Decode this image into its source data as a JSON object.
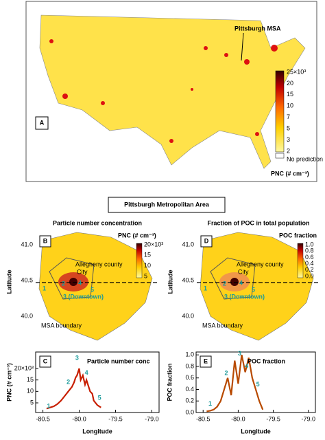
{
  "panel_a": {
    "label": "A",
    "annotation": "Pittsburgh MSA",
    "colorbar": {
      "ticks": [
        "25×10³",
        "20",
        "15",
        "10",
        "7",
        "5",
        "3",
        "2"
      ],
      "no_data": "No prediction",
      "title": "PNC (# cm⁻³)"
    }
  },
  "section_title": "Pittsburgh Metropolitan Area",
  "panel_b": {
    "title": "Particle number concentration",
    "label": "B",
    "y_axis_label": "Latitude",
    "y_ticks": [
      "41.0",
      "40.5",
      "40.0"
    ],
    "colorbar": {
      "title": "PNC (# cm⁻³)",
      "ticks": [
        "20×10³",
        "15",
        "10",
        "5"
      ]
    },
    "annotations": [
      "Allegheny county",
      "City",
      "1",
      "2",
      "3 (Downtown)",
      "4",
      "5",
      "MSA boundary"
    ]
  },
  "panel_d": {
    "title": "Fraction of POC in total population",
    "label": "D",
    "y_axis_label": "Latitude",
    "y_ticks": [
      "41.0",
      "40.5",
      "40.0"
    ],
    "colorbar": {
      "title": "POC fraction",
      "ticks": [
        "1.0",
        "0.8",
        "0.6",
        "0.4",
        "0.2",
        "0.0"
      ]
    },
    "annotations": [
      "Allegheny county",
      "City",
      "1",
      "2",
      "3 (Downtown)",
      "4",
      "5",
      "MSA boundary"
    ]
  },
  "chart_data": [
    {
      "type": "line",
      "label": "C",
      "title": "Particle number conc",
      "xlabel": "Longitude",
      "ylabel": "PNC (# cm⁻³)",
      "color": "#c81e00",
      "x": [
        -80.45,
        -80.4,
        -80.35,
        -80.3,
        -80.25,
        -80.2,
        -80.15,
        -80.1,
        -80.07,
        -80.05,
        -80.03,
        -80.0,
        -79.98,
        -79.95,
        -79.92,
        -79.9,
        -79.87,
        -79.85,
        -79.82,
        -79.8,
        -79.75,
        -79.7
      ],
      "values": [
        2500,
        3000,
        3500,
        4500,
        6000,
        8000,
        10000,
        12000,
        14000,
        16000,
        17000,
        20000,
        15000,
        17000,
        13000,
        15000,
        12000,
        10000,
        9000,
        6000,
        4000,
        3000
      ],
      "xlim": [
        -80.6,
        -78.9
      ],
      "xticks": [
        -80.5,
        {
          "value": -80,
          "label": "-80.0"
        },
        -79.5,
        {
          "value": -79,
          "label": "-79.0"
        }
      ],
      "ylim": [
        800,
        27200
      ],
      "yticks": [
        {
          "value": 5000,
          "label": "5"
        },
        {
          "value": 10000,
          "label": "10"
        },
        {
          "value": 15000,
          "label": "15"
        },
        {
          "value": 20000,
          "label": "20×10³"
        }
      ],
      "annotations": [
        "1",
        "2",
        "3",
        "4",
        "5"
      ]
    },
    {
      "type": "line",
      "label": "E",
      "title": "POC fraction",
      "xlabel": "Longitude",
      "ylabel": "POC fraction",
      "color": "#b84a00",
      "x": [
        -80.45,
        -80.4,
        -80.35,
        -80.3,
        -80.25,
        -80.2,
        -80.15,
        -80.1,
        -80.05,
        -80.0,
        -79.95,
        -79.9,
        -79.85,
        -79.8,
        -79.75,
        -79.7,
        -79.65
      ],
      "values": [
        0.02,
        0.03,
        0.05,
        0.1,
        0.2,
        0.4,
        0.6,
        0.3,
        0.9,
        0.5,
        1.0,
        0.7,
        0.95,
        0.6,
        0.4,
        0.2,
        0.05
      ],
      "xlim": [
        -80.6,
        -78.9
      ],
      "xticks": [
        -80.5,
        {
          "value": -80,
          "label": "-80.0"
        },
        -79.5,
        {
          "value": -79,
          "label": "-79.0"
        }
      ],
      "ylim": [
        0,
        1.05
      ],
      "yticks": [
        {
          "value": 0,
          "label": "0.0"
        },
        0.2,
        0.4,
        0.6,
        0.8,
        {
          "value": 1,
          "label": "1.0"
        }
      ],
      "annotations": [
        "1",
        "2",
        "3",
        "4",
        "5"
      ]
    }
  ]
}
